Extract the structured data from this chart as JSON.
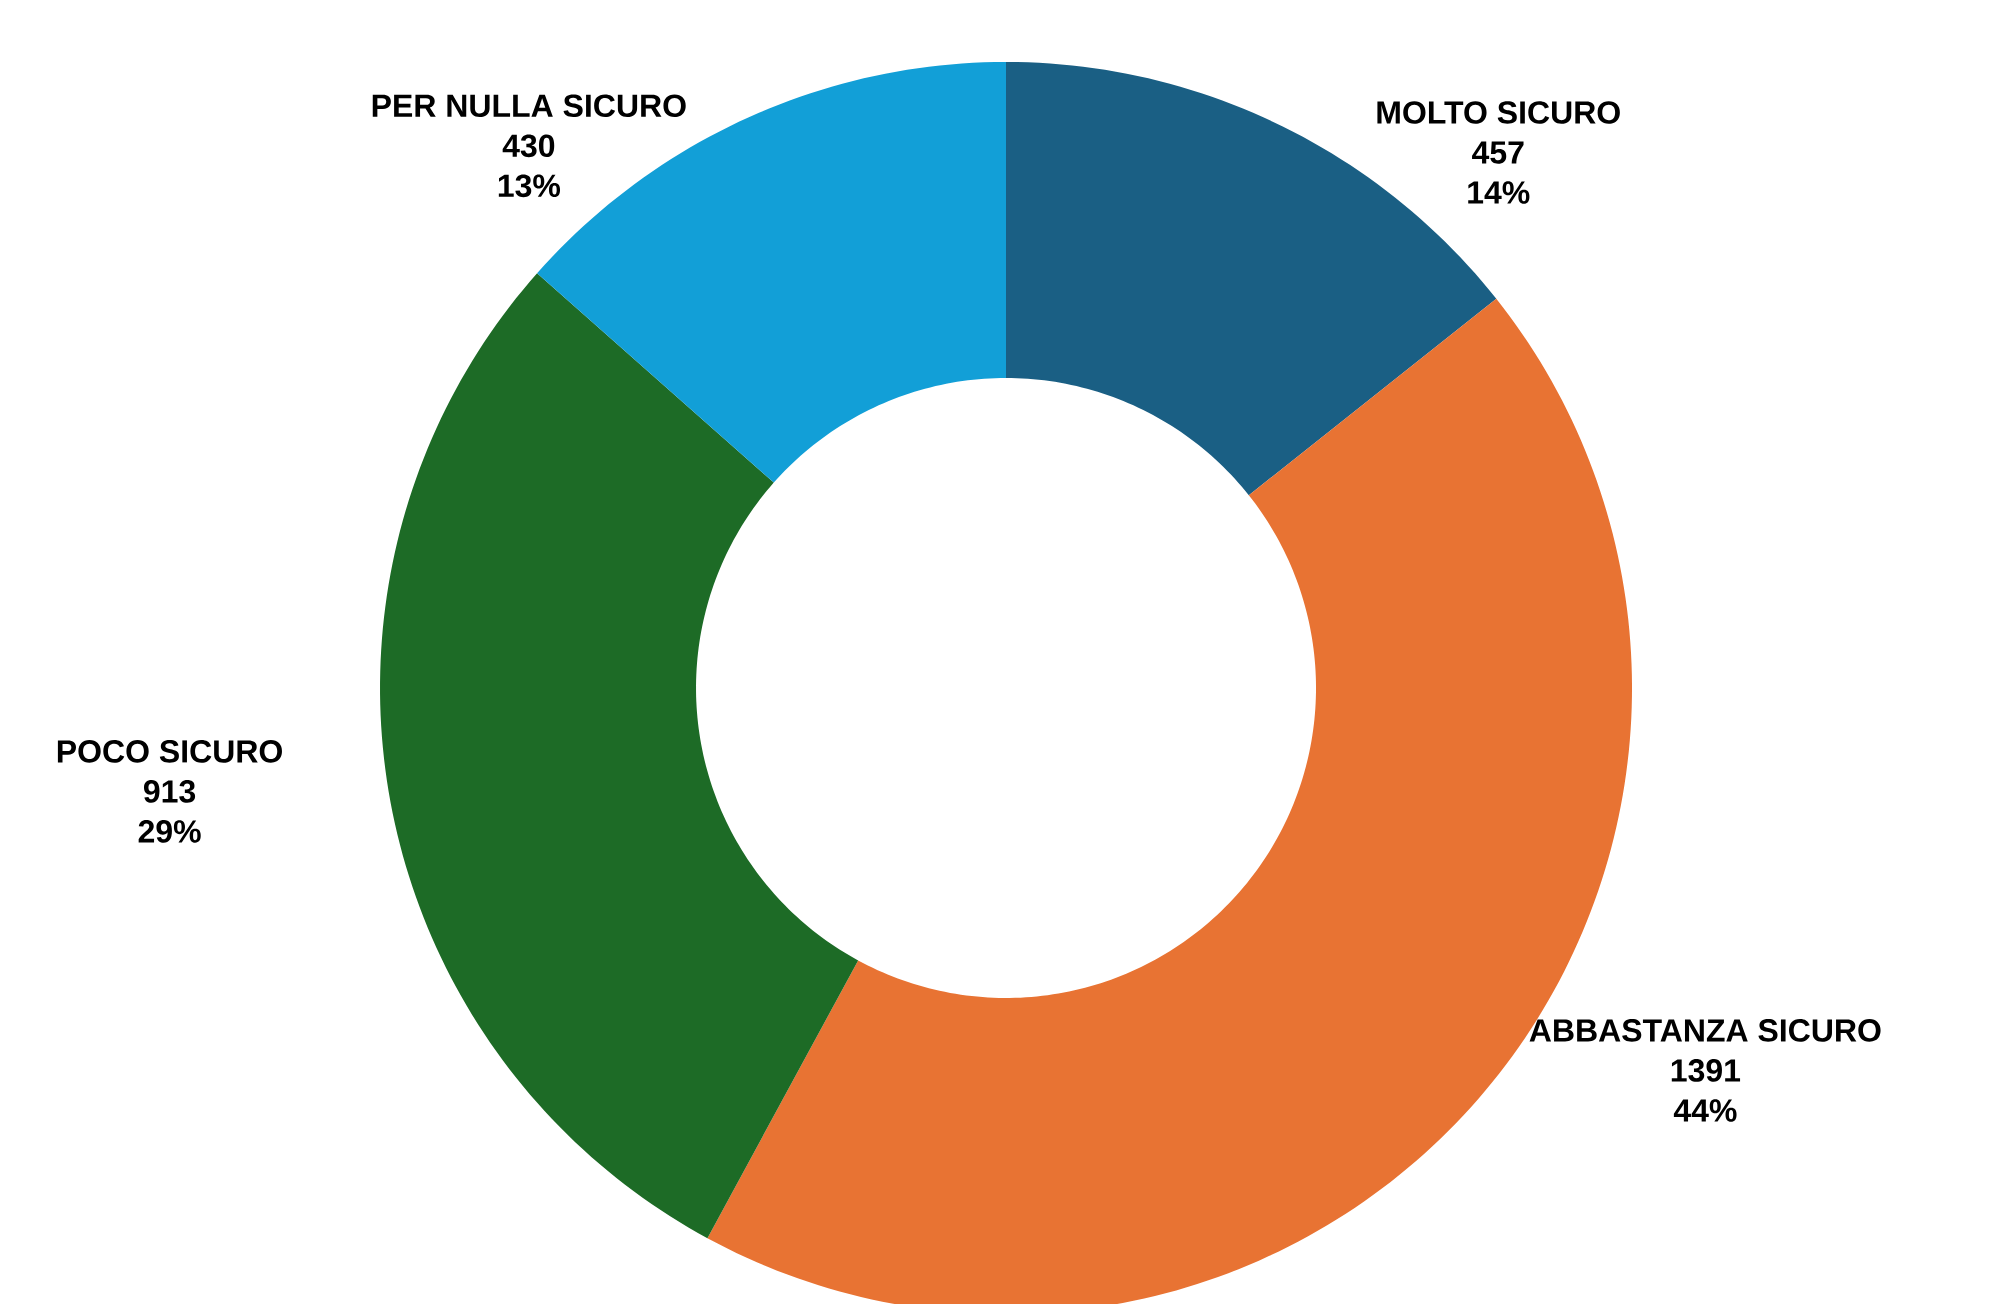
{
  "chart_data": {
    "type": "donut",
    "categories": [
      "MOLTO SICURO",
      "ABBASTANZA SICURO",
      "POCO SICURO",
      "PER NULLA SICURO"
    ],
    "values": [
      457,
      1391,
      913,
      430
    ],
    "colors": [
      "#1a5f84",
      "#e87333",
      "#1d6b26",
      "#129fd7"
    ],
    "data_labels": true,
    "annotations": [
      "14%",
      "44%",
      "29%",
      "13%"
    ]
  }
}
